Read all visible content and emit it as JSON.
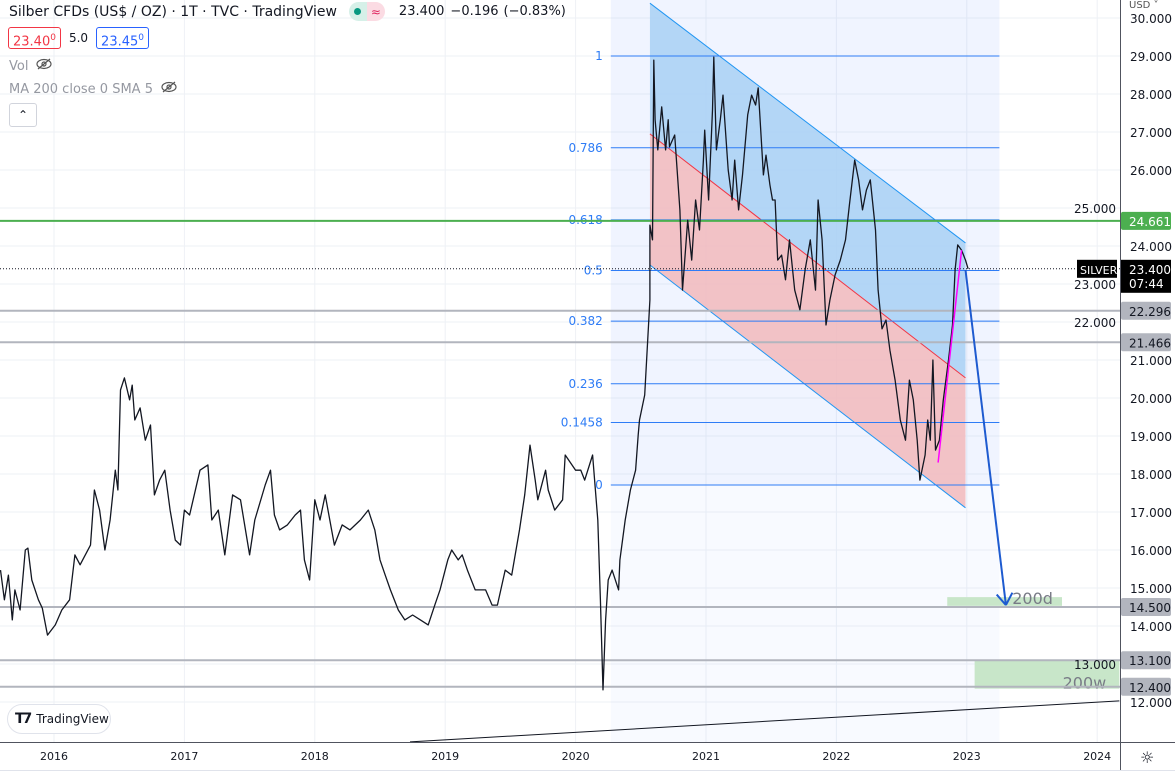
{
  "header": {
    "title": "Silber CFDs (US$ / OZ) · 1T · TVC · TradingView",
    "status_icon": "market-open-dot",
    "data_icon": "delayed-data-icon",
    "data_glyph": "≈",
    "last": "23.400",
    "change": "−0.196",
    "change_pct": "(−0.83%)"
  },
  "bid_ask": {
    "bid": "23.40",
    "bid_sup": "0",
    "spread": "5.0",
    "ask": "23.45",
    "ask_sup": "0"
  },
  "indicators": [
    {
      "label": "Vol",
      "icon": "eye-off-icon"
    },
    {
      "label": "MA 200 close 0 SMA 5",
      "icon": "eye-off-icon"
    }
  ],
  "collapse_glyph": "⌃",
  "logo_text": "TradingView",
  "currency": "USD ˅",
  "settings_glyph": "☼",
  "colors": {
    "accent": "#2962ff",
    "fib": "#2e7cf6",
    "green_level": "#4caf50",
    "gray_level": "#b2b5be",
    "channel_upper": "#a8d0f5",
    "channel_lower": "#f2b8bc",
    "zone": "#c8e6c9",
    "arrow": "#1e5bd0",
    "magenta": "#ff00ff"
  },
  "chart_data": {
    "type": "line",
    "symbol_label": "SILVER",
    "current_price": "23.400",
    "countdown": "07:44",
    "xlim": [
      2015.59,
      2024.17
    ],
    "ylim": [
      10.95,
      30.47
    ],
    "x_ticks": [
      "2016",
      "2017",
      "2018",
      "2019",
      "2020",
      "2021",
      "2022",
      "2023",
      "2024"
    ],
    "y_ticks": [
      "30.000",
      "29.000",
      "28.000",
      "27.000",
      "26.000",
      "25.000",
      "24.000",
      "23.000",
      "22.000",
      "21.000",
      "20.000",
      "19.000",
      "18.000",
      "17.000",
      "16.000",
      "15.000",
      "14.000",
      "13.000",
      "12.000"
    ],
    "grid": true,
    "series": [
      [
        2015.59,
        15.47
      ],
      [
        2015.62,
        14.69
      ],
      [
        2015.65,
        15.34
      ],
      [
        2015.68,
        14.16
      ],
      [
        2015.7,
        14.95
      ],
      [
        2015.74,
        14.42
      ],
      [
        2015.78,
        16.0
      ],
      [
        2015.8,
        16.05
      ],
      [
        2015.83,
        15.21
      ],
      [
        2015.88,
        14.69
      ],
      [
        2015.91,
        14.47
      ],
      [
        2015.95,
        13.76
      ],
      [
        2016.01,
        14.03
      ],
      [
        2016.06,
        14.42
      ],
      [
        2016.12,
        14.69
      ],
      [
        2016.16,
        15.87
      ],
      [
        2016.2,
        15.61
      ],
      [
        2016.28,
        16.13
      ],
      [
        2016.31,
        17.58
      ],
      [
        2016.35,
        17.05
      ],
      [
        2016.39,
        16.0
      ],
      [
        2016.43,
        16.79
      ],
      [
        2016.47,
        18.1
      ],
      [
        2016.49,
        17.58
      ],
      [
        2016.51,
        20.21
      ],
      [
        2016.54,
        20.53
      ],
      [
        2016.58,
        19.95
      ],
      [
        2016.6,
        20.34
      ],
      [
        2016.62,
        19.42
      ],
      [
        2016.66,
        19.74
      ],
      [
        2016.7,
        18.89
      ],
      [
        2016.74,
        19.29
      ],
      [
        2016.77,
        17.45
      ],
      [
        2016.81,
        17.84
      ],
      [
        2016.85,
        18.1
      ],
      [
        2016.89,
        17.05
      ],
      [
        2016.93,
        16.26
      ],
      [
        2016.97,
        16.13
      ],
      [
        2017.0,
        17.05
      ],
      [
        2017.04,
        16.92
      ],
      [
        2017.12,
        18.1
      ],
      [
        2017.18,
        18.24
      ],
      [
        2017.21,
        16.79
      ],
      [
        2017.26,
        17.05
      ],
      [
        2017.31,
        15.87
      ],
      [
        2017.37,
        17.45
      ],
      [
        2017.43,
        17.32
      ],
      [
        2017.5,
        15.87
      ],
      [
        2017.54,
        16.79
      ],
      [
        2017.62,
        17.71
      ],
      [
        2017.66,
        18.1
      ],
      [
        2017.69,
        16.92
      ],
      [
        2017.73,
        16.53
      ],
      [
        2017.79,
        16.66
      ],
      [
        2017.85,
        16.92
      ],
      [
        2017.89,
        17.05
      ],
      [
        2017.92,
        15.74
      ],
      [
        2017.96,
        15.21
      ],
      [
        2018.0,
        17.32
      ],
      [
        2018.04,
        16.79
      ],
      [
        2018.08,
        17.45
      ],
      [
        2018.15,
        16.13
      ],
      [
        2018.21,
        16.66
      ],
      [
        2018.27,
        16.53
      ],
      [
        2018.35,
        16.79
      ],
      [
        2018.41,
        17.05
      ],
      [
        2018.46,
        16.53
      ],
      [
        2018.5,
        15.74
      ],
      [
        2018.54,
        15.34
      ],
      [
        2018.58,
        14.95
      ],
      [
        2018.64,
        14.42
      ],
      [
        2018.69,
        14.16
      ],
      [
        2018.75,
        14.29
      ],
      [
        2018.81,
        14.16
      ],
      [
        2018.87,
        14.03
      ],
      [
        2018.92,
        14.55
      ],
      [
        2018.96,
        14.95
      ],
      [
        2019.02,
        15.74
      ],
      [
        2019.05,
        16.0
      ],
      [
        2019.1,
        15.74
      ],
      [
        2019.13,
        15.87
      ],
      [
        2019.17,
        15.47
      ],
      [
        2019.23,
        14.95
      ],
      [
        2019.31,
        14.95
      ],
      [
        2019.36,
        14.55
      ],
      [
        2019.4,
        14.55
      ],
      [
        2019.46,
        15.47
      ],
      [
        2019.51,
        15.34
      ],
      [
        2019.57,
        16.53
      ],
      [
        2019.61,
        17.45
      ],
      [
        2019.65,
        18.76
      ],
      [
        2019.69,
        17.84
      ],
      [
        2019.71,
        17.32
      ],
      [
        2019.77,
        18.1
      ],
      [
        2019.79,
        17.58
      ],
      [
        2019.84,
        17.05
      ],
      [
        2019.9,
        17.32
      ],
      [
        2019.92,
        18.5
      ],
      [
        2020.0,
        18.1
      ],
      [
        2020.04,
        18.1
      ],
      [
        2020.07,
        17.84
      ],
      [
        2020.13,
        18.5
      ],
      [
        2020.17,
        16.79
      ],
      [
        2020.19,
        14.69
      ],
      [
        2020.21,
        12.32
      ],
      [
        2020.23,
        14.16
      ],
      [
        2020.25,
        15.21
      ],
      [
        2020.28,
        15.47
      ],
      [
        2020.33,
        14.95
      ],
      [
        2020.34,
        15.74
      ],
      [
        2020.38,
        16.79
      ],
      [
        2020.42,
        17.58
      ],
      [
        2020.46,
        18.1
      ],
      [
        2020.48,
        19.03
      ],
      [
        2020.49,
        19.42
      ],
      [
        2020.53,
        20.08
      ],
      [
        2020.57,
        22.58
      ],
      [
        2020.57,
        24.55
      ],
      [
        2020.59,
        24.16
      ],
      [
        2020.6,
        28.89
      ],
      [
        2020.61,
        27.32
      ],
      [
        2020.63,
        26.53
      ],
      [
        2020.66,
        27.66
      ],
      [
        2020.69,
        26.53
      ],
      [
        2020.71,
        27.32
      ],
      [
        2020.72,
        26.61
      ],
      [
        2020.76,
        26.92
      ],
      [
        2020.8,
        24.95
      ],
      [
        2020.82,
        22.84
      ],
      [
        2020.86,
        24.68
      ],
      [
        2020.89,
        23.63
      ],
      [
        2020.92,
        25.21
      ],
      [
        2020.95,
        24.42
      ],
      [
        2020.98,
        26.26
      ],
      [
        2020.99,
        27.05
      ],
      [
        2021.02,
        25.21
      ],
      [
        2021.05,
        27.58
      ],
      [
        2021.06,
        28.97
      ],
      [
        2021.08,
        26.53
      ],
      [
        2021.11,
        27.32
      ],
      [
        2021.13,
        27.97
      ],
      [
        2021.17,
        26.0
      ],
      [
        2021.2,
        25.21
      ],
      [
        2021.22,
        26.26
      ],
      [
        2021.25,
        24.95
      ],
      [
        2021.28,
        25.87
      ],
      [
        2021.32,
        27.45
      ],
      [
        2021.35,
        27.97
      ],
      [
        2021.38,
        27.71
      ],
      [
        2021.4,
        28.16
      ],
      [
        2021.44,
        25.87
      ],
      [
        2021.46,
        26.39
      ],
      [
        2021.49,
        25.61
      ],
      [
        2021.51,
        25.21
      ],
      [
        2021.53,
        25.21
      ],
      [
        2021.55,
        23.63
      ],
      [
        2021.58,
        23.76
      ],
      [
        2021.61,
        23.11
      ],
      [
        2021.64,
        24.16
      ],
      [
        2021.68,
        22.84
      ],
      [
        2021.72,
        22.32
      ],
      [
        2021.76,
        23.37
      ],
      [
        2021.8,
        24.16
      ],
      [
        2021.84,
        22.84
      ],
      [
        2021.86,
        25.21
      ],
      [
        2021.89,
        24.16
      ],
      [
        2021.92,
        21.92
      ],
      [
        2021.95,
        22.58
      ],
      [
        2021.99,
        23.24
      ],
      [
        2022.03,
        23.63
      ],
      [
        2022.07,
        24.16
      ],
      [
        2022.1,
        25.08
      ],
      [
        2022.14,
        26.26
      ],
      [
        2022.17,
        25.74
      ],
      [
        2022.2,
        24.95
      ],
      [
        2022.23,
        25.47
      ],
      [
        2022.26,
        25.74
      ],
      [
        2022.3,
        24.42
      ],
      [
        2022.32,
        22.84
      ],
      [
        2022.35,
        21.82
      ],
      [
        2022.38,
        22.05
      ],
      [
        2022.41,
        21.26
      ],
      [
        2022.45,
        20.47
      ],
      [
        2022.49,
        19.42
      ],
      [
        2022.53,
        18.89
      ],
      [
        2022.56,
        20.47
      ],
      [
        2022.59,
        19.95
      ],
      [
        2022.62,
        18.89
      ],
      [
        2022.64,
        17.84
      ],
      [
        2022.68,
        18.5
      ],
      [
        2022.7,
        19.42
      ],
      [
        2022.72,
        18.89
      ],
      [
        2022.74,
        21.0
      ],
      [
        2022.76,
        18.63
      ],
      [
        2022.79,
        18.89
      ],
      [
        2022.82,
        19.95
      ],
      [
        2022.86,
        21.0
      ],
      [
        2022.89,
        21.92
      ],
      [
        2022.91,
        23.37
      ],
      [
        2022.93,
        24.03
      ],
      [
        2022.96,
        23.89
      ],
      [
        2022.99,
        23.63
      ],
      [
        2023.01,
        23.4
      ]
    ],
    "drawings": {
      "fib_retracement": {
        "start": 2020.27,
        "end": 2023.25,
        "high": 29.0,
        "low": 17.71,
        "levels": [
          {
            "label": "1",
            "ratio": 1
          },
          {
            "label": "0.786",
            "ratio": 0.786
          },
          {
            "label": "0.618",
            "ratio": 0.618
          },
          {
            "label": "0.5",
            "ratio": 0.5
          },
          {
            "label": "0.382",
            "ratio": 0.382
          },
          {
            "label": "0.236",
            "ratio": 0.236
          },
          {
            "label": "0.1458",
            "ratio": 0.1458
          },
          {
            "label": "0",
            "ratio": 0
          }
        ]
      },
      "channel": {
        "t0": 2020.57,
        "t1": 2022.99,
        "upper": [
          30.39,
          24.08
        ],
        "middle": [
          26.95,
          20.53
        ],
        "lower": [
          23.5,
          17.11
        ]
      },
      "horizontal_levels": [
        {
          "price": 24.661,
          "label": "24.661",
          "style": "green"
        },
        {
          "price": 22.296,
          "label": "22.296",
          "style": "gray"
        },
        {
          "price": 21.466,
          "label": "21.466",
          "style": "gray"
        },
        {
          "price": 14.5,
          "label": "14.500",
          "style": "gray"
        },
        {
          "price": 13.1,
          "label": "13.100",
          "style": "gray"
        },
        {
          "price": 12.4,
          "label": "12.400",
          "style": "gray"
        }
      ],
      "zones": [
        {
          "label": "200d",
          "t0": 2022.85,
          "t1": 2023.73,
          "p0": 14.53,
          "p1": 14.76
        },
        {
          "label": "200w",
          "t0": 2023.06,
          "t1": 2024.17,
          "p0": 12.35,
          "p1": 13.1
        }
      ],
      "arrow": {
        "t0": 2022.99,
        "p0": 23.37,
        "t1": 2023.3,
        "p1": 14.55
      },
      "magenta_line": {
        "t0": 2022.78,
        "p0": 18.3,
        "t1": 2022.96,
        "p1": 23.89
      },
      "trend_line": {
        "t0": 2018.73,
        "p0": 10.95,
        "t1": 2024.17,
        "p1": 12.03
      }
    }
  }
}
